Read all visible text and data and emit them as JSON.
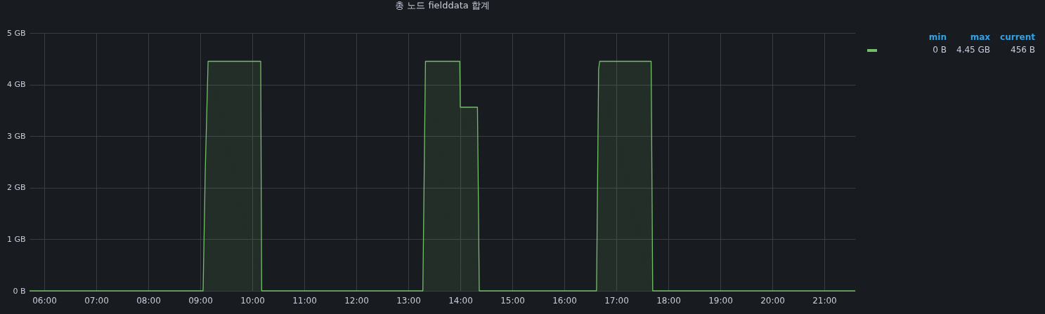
{
  "chart_data": {
    "type": "area",
    "title": "총 노드 fielddata 합계",
    "x": [
      5.716,
      9.054,
      9.095,
      9.15,
      10.162,
      10.18,
      13.28,
      13.33,
      13.99,
      14.0,
      14.33,
      14.365,
      16.62,
      16.66,
      16.68,
      17.67,
      17.7,
      21.595
    ],
    "series": [
      {
        "color": "#73bf69",
        "values": [
          0,
          0,
          2.3,
          4.45,
          4.45,
          0,
          0,
          4.45,
          4.45,
          3.56,
          3.56,
          0,
          0,
          4.3,
          4.45,
          4.45,
          0,
          0
        ]
      }
    ],
    "xlim": [
      5.716,
      21.595
    ],
    "xticks": [
      {
        "value": 6,
        "label": "06:00"
      },
      {
        "value": 7,
        "label": "07:00"
      },
      {
        "value": 8,
        "label": "08:00"
      },
      {
        "value": 9,
        "label": "09:00"
      },
      {
        "value": 10,
        "label": "10:00"
      },
      {
        "value": 11,
        "label": "11:00"
      },
      {
        "value": 12,
        "label": "12:00"
      },
      {
        "value": 13,
        "label": "13:00"
      },
      {
        "value": 14,
        "label": "14:00"
      },
      {
        "value": 15,
        "label": "15:00"
      },
      {
        "value": 16,
        "label": "16:00"
      },
      {
        "value": 17,
        "label": "17:00"
      },
      {
        "value": 18,
        "label": "18:00"
      },
      {
        "value": 19,
        "label": "19:00"
      },
      {
        "value": 20,
        "label": "20:00"
      },
      {
        "value": 21,
        "label": "21:00"
      }
    ],
    "ylim": [
      0,
      5
    ],
    "yticks": [
      {
        "value": 0,
        "label": "0 B"
      },
      {
        "value": 1,
        "label": "1 GB"
      },
      {
        "value": 2,
        "label": "2 GB"
      },
      {
        "value": 3,
        "label": "3 GB"
      },
      {
        "value": 4,
        "label": "4 GB"
      },
      {
        "value": 5,
        "label": "5 GB"
      }
    ],
    "grid": true,
    "annotations": [
      "min",
      "max",
      "current",
      "0 B",
      "4.45 GB",
      "456 B"
    ]
  }
}
